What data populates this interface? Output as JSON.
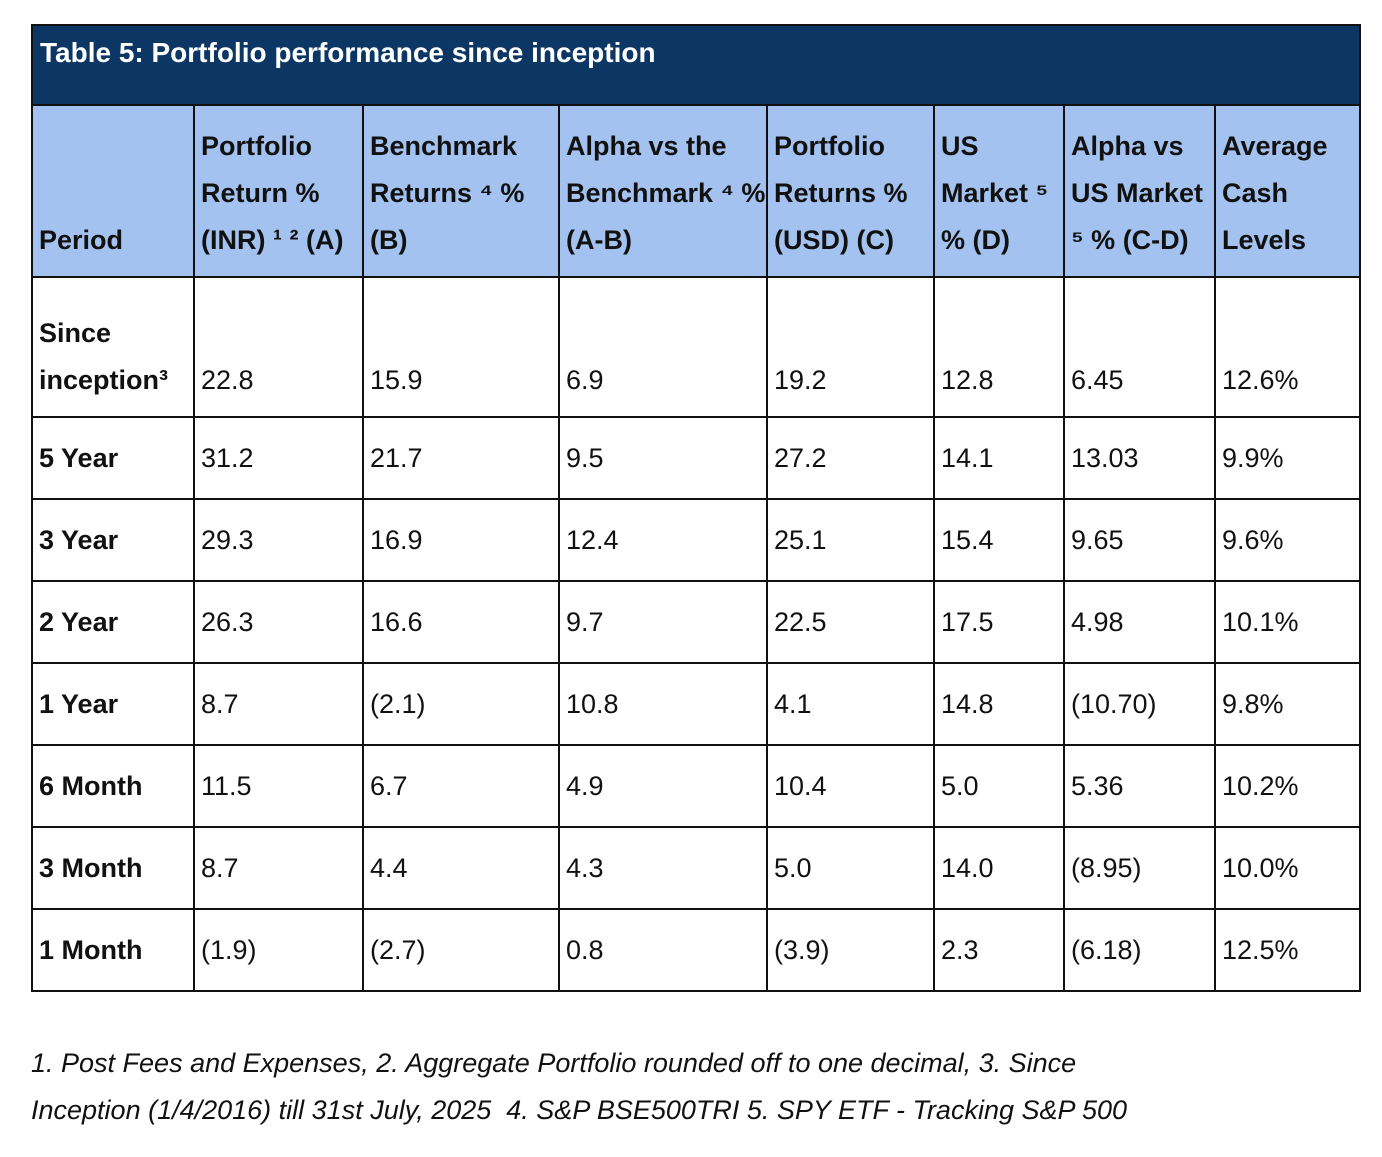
{
  "table": {
    "title": "Table 5: Portfolio performance since inception",
    "headers": [
      "Period",
      "Portfolio Return % (INR) ¹ ² (A)",
      "Benchmark Returns ⁴ % (B)",
      "Alpha vs the Benchmark ⁴ % (A-B)",
      "Portfolio Returns % (USD) (C)",
      "US Market ⁵ % (D)",
      "Alpha vs US Market ⁵ % (C-D)",
      "Average Cash Levels"
    ],
    "rows": [
      [
        "Since inception³",
        "22.8",
        "15.9",
        "6.9",
        "19.2",
        "12.8",
        "6.45",
        "12.6%"
      ],
      [
        "5 Year",
        "31.2",
        "21.7",
        "9.5",
        "27.2",
        "14.1",
        "13.03",
        "9.9%"
      ],
      [
        "3 Year",
        "29.3",
        "16.9",
        "12.4",
        "25.1",
        "15.4",
        "9.65",
        "9.6%"
      ],
      [
        "2 Year",
        "26.3",
        "16.6",
        "9.7",
        "22.5",
        "17.5",
        "4.98",
        "10.1%"
      ],
      [
        "1 Year",
        "8.7",
        "(2.1)",
        "10.8",
        "4.1",
        "14.8",
        "(10.70)",
        "9.8%"
      ],
      [
        "6 Month",
        "11.5",
        "6.7",
        "4.9",
        "10.4",
        "5.0",
        "5.36",
        "10.2%"
      ],
      [
        "3 Month",
        "8.7",
        "4.4",
        "4.3",
        "5.0",
        "14.0",
        "(8.95)",
        "10.0%"
      ],
      [
        "1 Month",
        "(1.9)",
        "(2.7)",
        "0.8",
        "(3.9)",
        "2.3",
        "(6.18)",
        "12.5%"
      ]
    ]
  },
  "footnote": {
    "line1": "1. Post Fees and Expenses, 2. Aggregate Portfolio rounded off to one decimal, 3. Since",
    "line2": "Inception (1/4/2016) till 31st July, 2025  4. S&P BSE500TRI 5. SPY ETF - Tracking S&P 500"
  },
  "colors": {
    "title_bg": "#0c3764",
    "header_bg": "#a3c2f0",
    "border": "#111111"
  }
}
